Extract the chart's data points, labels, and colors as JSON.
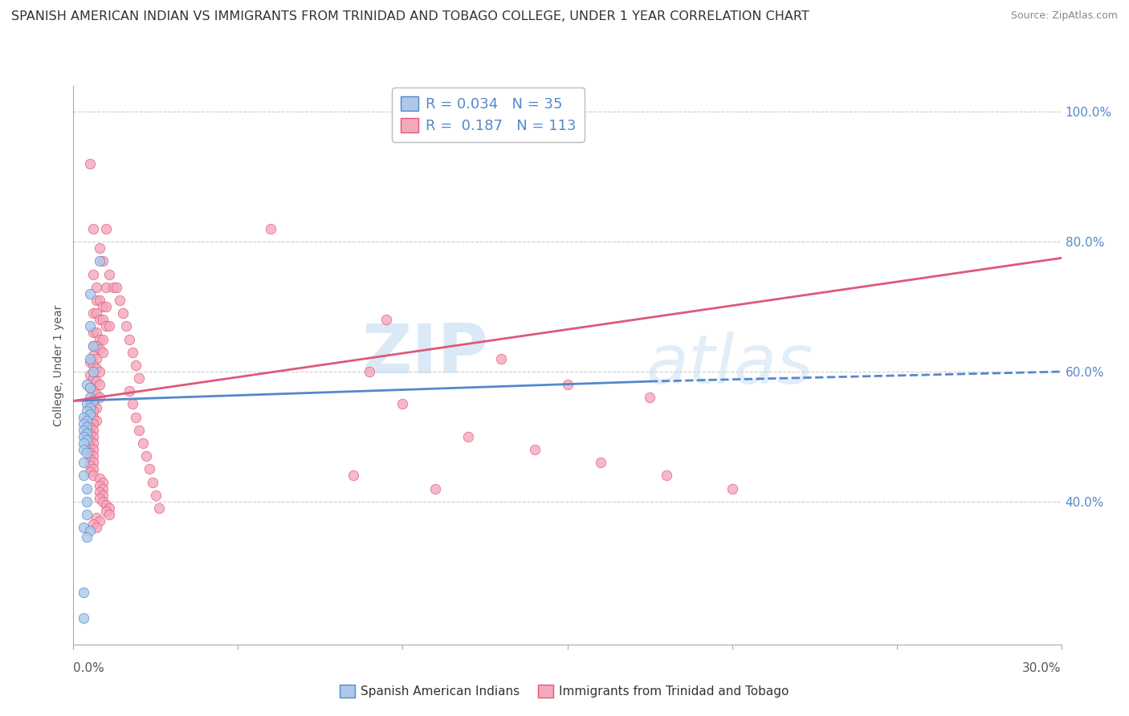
{
  "title": "SPANISH AMERICAN INDIAN VS IMMIGRANTS FROM TRINIDAD AND TOBAGO COLLEGE, UNDER 1 YEAR CORRELATION CHART",
  "source": "Source: ZipAtlas.com",
  "ylabel": "College, Under 1 year",
  "legend_blue_r": "0.034",
  "legend_blue_n": "35",
  "legend_pink_r": "0.187",
  "legend_pink_n": "113",
  "legend_label_blue": "Spanish American Indians",
  "legend_label_pink": "Immigrants from Trinidad and Tobago",
  "color_blue": "#adc8e8",
  "color_pink": "#f4a8bc",
  "line_blue": "#5588cc",
  "line_pink": "#e05878",
  "watermark_zip": "ZIP",
  "watermark_atlas": "atlas",
  "blue_scatter": [
    [
      0.005,
      0.72
    ],
    [
      0.008,
      0.77
    ],
    [
      0.005,
      0.67
    ],
    [
      0.006,
      0.64
    ],
    [
      0.005,
      0.62
    ],
    [
      0.006,
      0.6
    ],
    [
      0.004,
      0.58
    ],
    [
      0.005,
      0.575
    ],
    [
      0.005,
      0.56
    ],
    [
      0.006,
      0.555
    ],
    [
      0.004,
      0.55
    ],
    [
      0.005,
      0.545
    ],
    [
      0.004,
      0.54
    ],
    [
      0.005,
      0.535
    ],
    [
      0.003,
      0.53
    ],
    [
      0.004,
      0.525
    ],
    [
      0.003,
      0.52
    ],
    [
      0.004,
      0.515
    ],
    [
      0.003,
      0.51
    ],
    [
      0.004,
      0.505
    ],
    [
      0.003,
      0.5
    ],
    [
      0.004,
      0.495
    ],
    [
      0.003,
      0.49
    ],
    [
      0.003,
      0.48
    ],
    [
      0.004,
      0.475
    ],
    [
      0.003,
      0.46
    ],
    [
      0.003,
      0.44
    ],
    [
      0.004,
      0.42
    ],
    [
      0.004,
      0.4
    ],
    [
      0.004,
      0.38
    ],
    [
      0.003,
      0.36
    ],
    [
      0.005,
      0.355
    ],
    [
      0.004,
      0.345
    ],
    [
      0.003,
      0.26
    ],
    [
      0.003,
      0.22
    ]
  ],
  "pink_scatter": [
    [
      0.005,
      0.92
    ],
    [
      0.006,
      0.82
    ],
    [
      0.01,
      0.82
    ],
    [
      0.008,
      0.79
    ],
    [
      0.009,
      0.77
    ],
    [
      0.011,
      0.75
    ],
    [
      0.006,
      0.75
    ],
    [
      0.007,
      0.73
    ],
    [
      0.01,
      0.73
    ],
    [
      0.012,
      0.73
    ],
    [
      0.007,
      0.71
    ],
    [
      0.008,
      0.71
    ],
    [
      0.009,
      0.7
    ],
    [
      0.01,
      0.7
    ],
    [
      0.006,
      0.69
    ],
    [
      0.007,
      0.69
    ],
    [
      0.008,
      0.68
    ],
    [
      0.009,
      0.68
    ],
    [
      0.01,
      0.67
    ],
    [
      0.011,
      0.67
    ],
    [
      0.006,
      0.66
    ],
    [
      0.007,
      0.66
    ],
    [
      0.008,
      0.65
    ],
    [
      0.009,
      0.65
    ],
    [
      0.006,
      0.64
    ],
    [
      0.007,
      0.64
    ],
    [
      0.008,
      0.635
    ],
    [
      0.009,
      0.63
    ],
    [
      0.006,
      0.625
    ],
    [
      0.007,
      0.62
    ],
    [
      0.005,
      0.615
    ],
    [
      0.006,
      0.61
    ],
    [
      0.007,
      0.605
    ],
    [
      0.008,
      0.6
    ],
    [
      0.005,
      0.595
    ],
    [
      0.006,
      0.59
    ],
    [
      0.007,
      0.585
    ],
    [
      0.008,
      0.58
    ],
    [
      0.005,
      0.575
    ],
    [
      0.006,
      0.57
    ],
    [
      0.007,
      0.565
    ],
    [
      0.008,
      0.56
    ],
    [
      0.005,
      0.555
    ],
    [
      0.006,
      0.55
    ],
    [
      0.007,
      0.545
    ],
    [
      0.006,
      0.54
    ],
    [
      0.005,
      0.535
    ],
    [
      0.006,
      0.53
    ],
    [
      0.007,
      0.525
    ],
    [
      0.006,
      0.52
    ],
    [
      0.005,
      0.515
    ],
    [
      0.006,
      0.51
    ],
    [
      0.005,
      0.505
    ],
    [
      0.006,
      0.5
    ],
    [
      0.005,
      0.495
    ],
    [
      0.006,
      0.49
    ],
    [
      0.005,
      0.485
    ],
    [
      0.006,
      0.48
    ],
    [
      0.005,
      0.475
    ],
    [
      0.006,
      0.47
    ],
    [
      0.005,
      0.465
    ],
    [
      0.006,
      0.46
    ],
    [
      0.005,
      0.455
    ],
    [
      0.006,
      0.45
    ],
    [
      0.005,
      0.445
    ],
    [
      0.006,
      0.44
    ],
    [
      0.008,
      0.435
    ],
    [
      0.009,
      0.43
    ],
    [
      0.008,
      0.425
    ],
    [
      0.009,
      0.42
    ],
    [
      0.008,
      0.415
    ],
    [
      0.009,
      0.41
    ],
    [
      0.008,
      0.405
    ],
    [
      0.009,
      0.4
    ],
    [
      0.01,
      0.395
    ],
    [
      0.011,
      0.39
    ],
    [
      0.01,
      0.385
    ],
    [
      0.011,
      0.38
    ],
    [
      0.007,
      0.375
    ],
    [
      0.008,
      0.37
    ],
    [
      0.006,
      0.365
    ],
    [
      0.007,
      0.36
    ],
    [
      0.013,
      0.73
    ],
    [
      0.014,
      0.71
    ],
    [
      0.015,
      0.69
    ],
    [
      0.016,
      0.67
    ],
    [
      0.017,
      0.65
    ],
    [
      0.018,
      0.63
    ],
    [
      0.019,
      0.61
    ],
    [
      0.02,
      0.59
    ],
    [
      0.017,
      0.57
    ],
    [
      0.018,
      0.55
    ],
    [
      0.019,
      0.53
    ],
    [
      0.02,
      0.51
    ],
    [
      0.021,
      0.49
    ],
    [
      0.022,
      0.47
    ],
    [
      0.023,
      0.45
    ],
    [
      0.024,
      0.43
    ],
    [
      0.025,
      0.41
    ],
    [
      0.026,
      0.39
    ],
    [
      0.06,
      0.82
    ],
    [
      0.09,
      0.6
    ],
    [
      0.1,
      0.55
    ],
    [
      0.12,
      0.5
    ],
    [
      0.14,
      0.48
    ],
    [
      0.16,
      0.46
    ],
    [
      0.18,
      0.44
    ],
    [
      0.2,
      0.42
    ],
    [
      0.085,
      0.44
    ],
    [
      0.11,
      0.42
    ],
    [
      0.15,
      0.58
    ],
    [
      0.175,
      0.56
    ],
    [
      0.095,
      0.68
    ],
    [
      0.13,
      0.62
    ]
  ],
  "xlim": [
    0.0,
    0.3
  ],
  "ylim": [
    0.18,
    1.04
  ],
  "blue_line_x": [
    0.0,
    0.175,
    0.3
  ],
  "blue_line_y": [
    0.555,
    0.585,
    0.6
  ],
  "blue_line_style": [
    "solid",
    "dashed"
  ],
  "blue_line_split": 0.175,
  "pink_line_x": [
    0.0,
    0.3
  ],
  "pink_line_y": [
    0.555,
    0.775
  ],
  "bg_color": "#ffffff",
  "grid_color": "#cccccc",
  "ytick_color": "#5588cc",
  "title_fontsize": 11.5,
  "source_fontsize": 9,
  "axis_label_fontsize": 10,
  "tick_fontsize": 11,
  "legend_fontsize": 13
}
